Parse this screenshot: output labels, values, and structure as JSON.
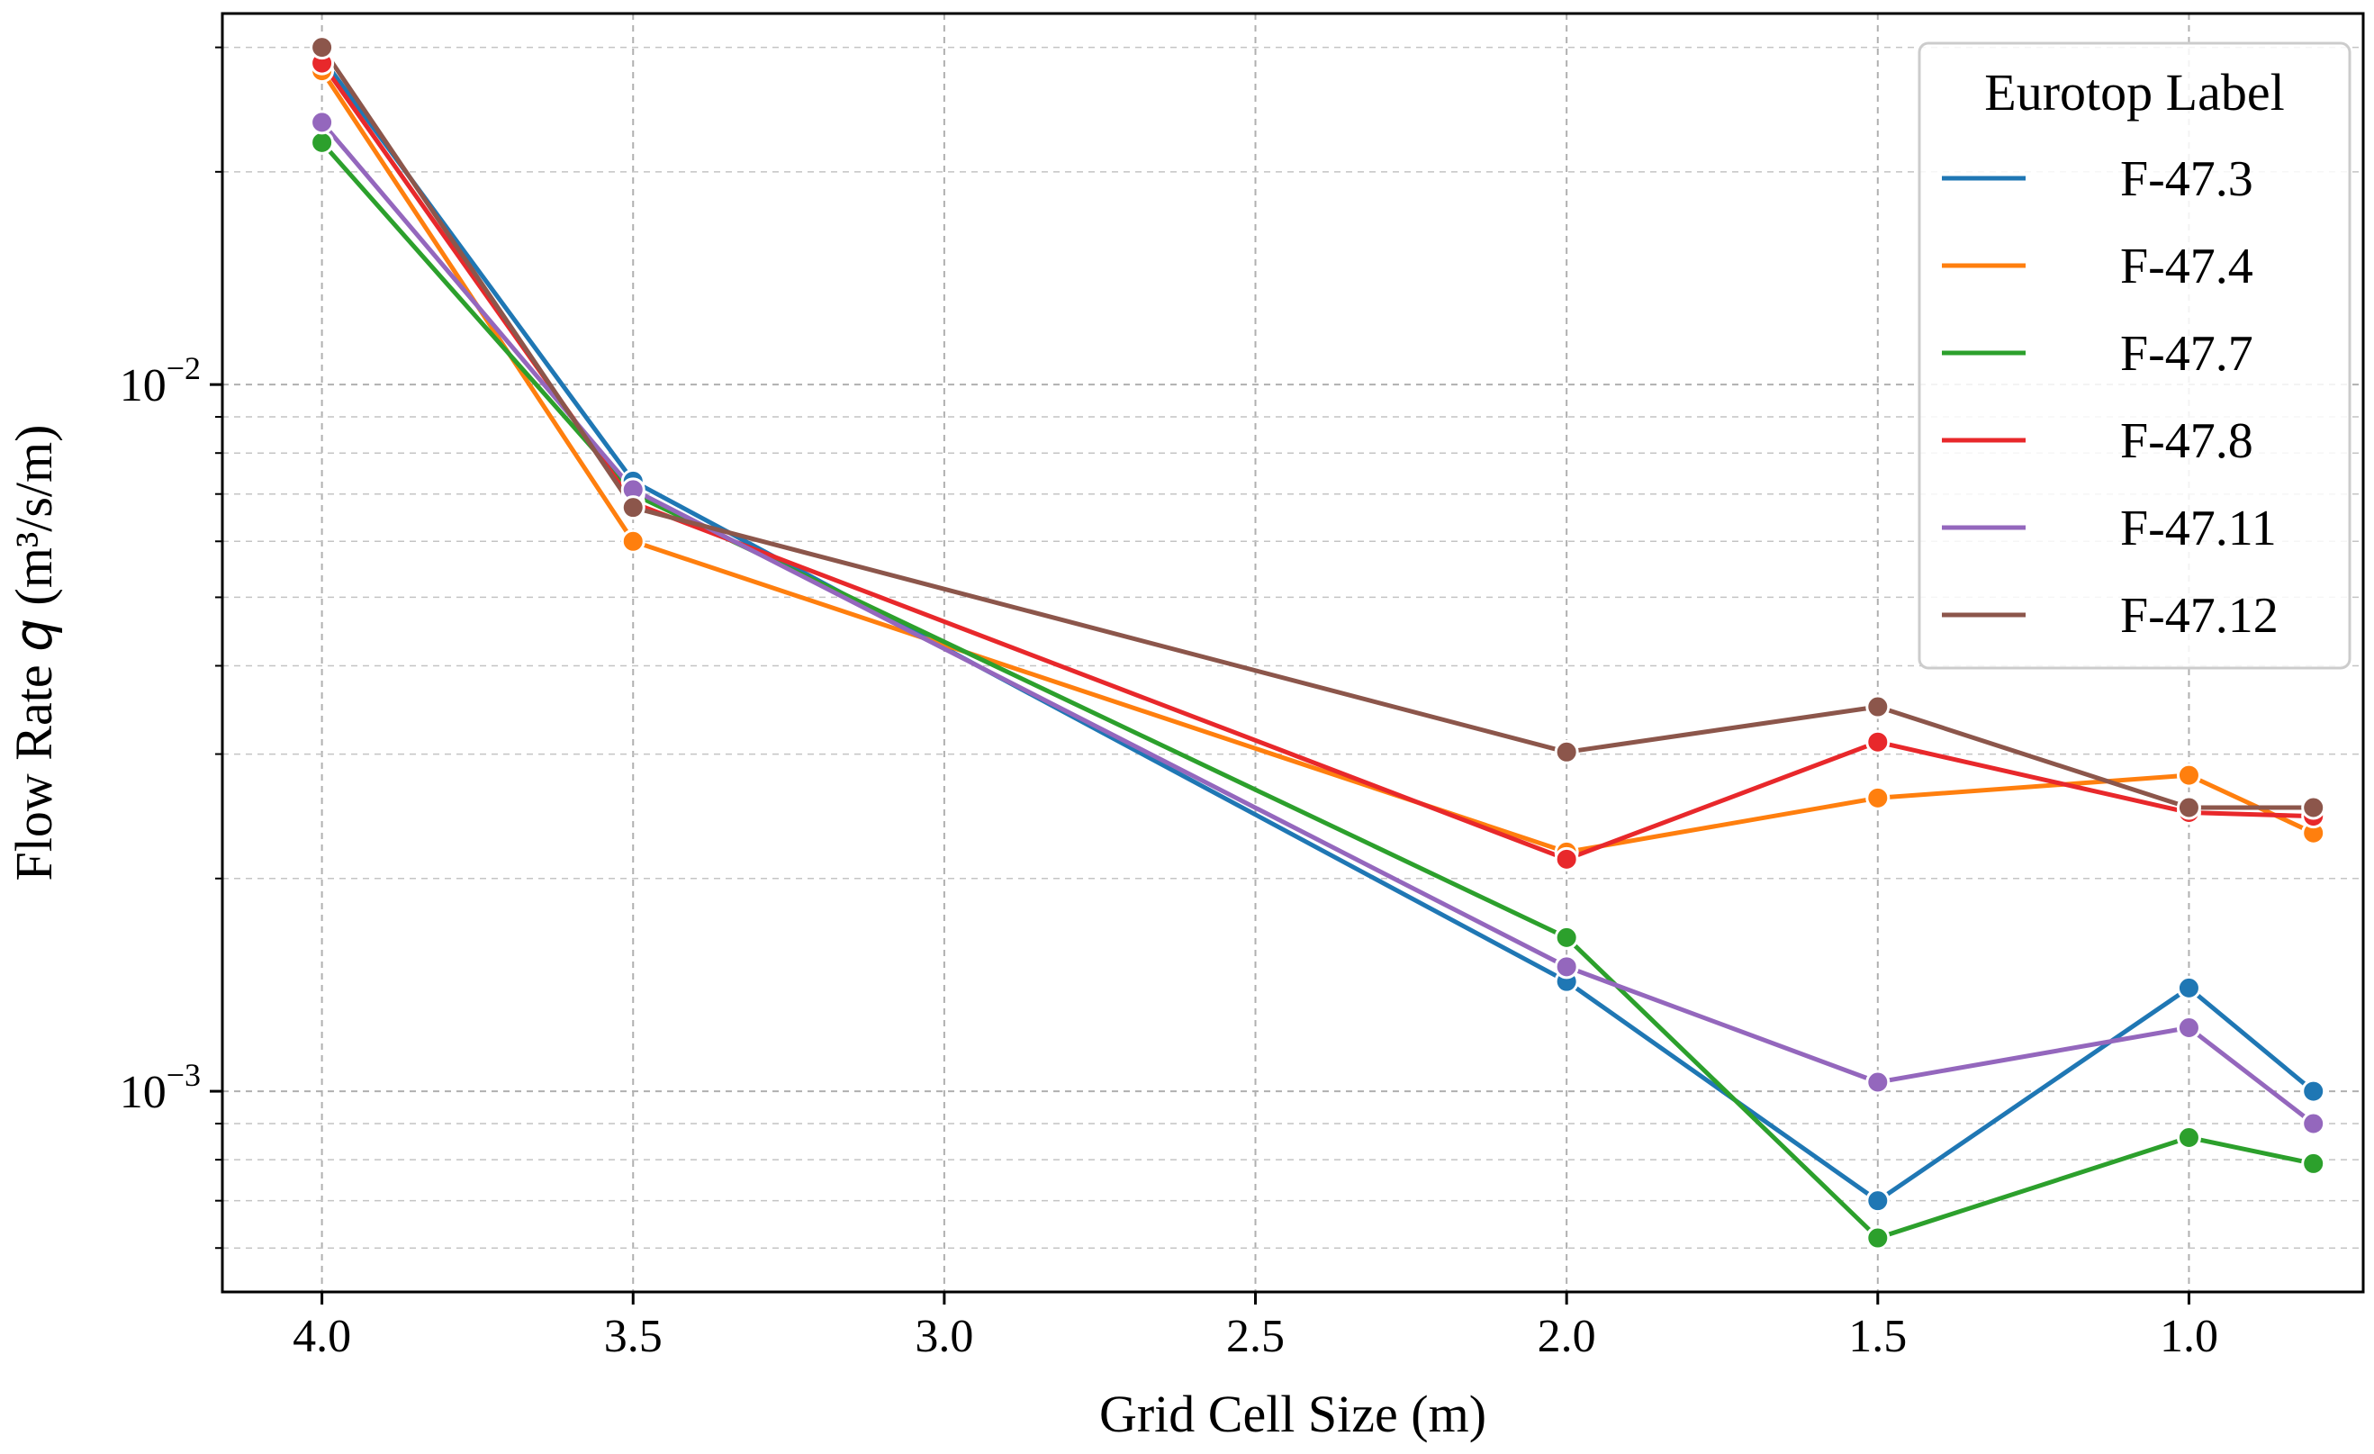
{
  "chart_data": {
    "type": "line",
    "title": "",
    "xlabel": "Grid Cell Size (m)",
    "ylabel_prefix": "Flow Rate ",
    "ylabel_var": "q",
    "ylabel_units": " (m³/s/m)",
    "y_scale": "log",
    "x_reversed": true,
    "xlim": [
      4.16,
      0.72
    ],
    "ylim": [
      0.00052,
      0.0335
    ],
    "grid": true,
    "x": [
      4.0,
      3.5,
      2.0,
      1.5,
      1.0,
      0.8
    ],
    "x_ticks": [
      4.0,
      3.5,
      3.0,
      2.5,
      2.0,
      1.5,
      1.0
    ],
    "x_tick_labels": [
      "4.0",
      "3.5",
      "3.0",
      "2.5",
      "2.0",
      "1.5",
      "1.0"
    ],
    "y_ticks": [
      {
        "base": "10",
        "exp": "−2",
        "value": 0.01
      },
      {
        "base": "10",
        "exp": "−3",
        "value": 0.001
      }
    ],
    "legend": {
      "title": "Eurotop Label",
      "placement": "upper right"
    },
    "series": [
      {
        "name": "F-47.3",
        "color": "#1f77b4",
        "values": [
          0.029,
          0.0073,
          0.00143,
          0.0007,
          0.0014,
          0.001
        ]
      },
      {
        "name": "F-47.4",
        "color": "#ff7f0e",
        "values": [
          0.0278,
          0.006,
          0.00218,
          0.0026,
          0.0028,
          0.00232
        ]
      },
      {
        "name": "F-47.7",
        "color": "#2ca02c",
        "values": [
          0.022,
          0.007,
          0.00165,
          0.00062,
          0.00086,
          0.00079
        ]
      },
      {
        "name": "F-47.8",
        "color": "#e8282b",
        "values": [
          0.0285,
          0.0068,
          0.00213,
          0.00312,
          0.00248,
          0.00245
        ]
      },
      {
        "name": "F-47.11",
        "color": "#9467bd",
        "values": [
          0.0235,
          0.0071,
          0.0015,
          0.00103,
          0.00123,
          0.0009
        ]
      },
      {
        "name": "F-47.12",
        "color": "#8c564b",
        "values": [
          0.03,
          0.0067,
          0.00302,
          0.0035,
          0.00252,
          0.00252
        ]
      }
    ]
  }
}
